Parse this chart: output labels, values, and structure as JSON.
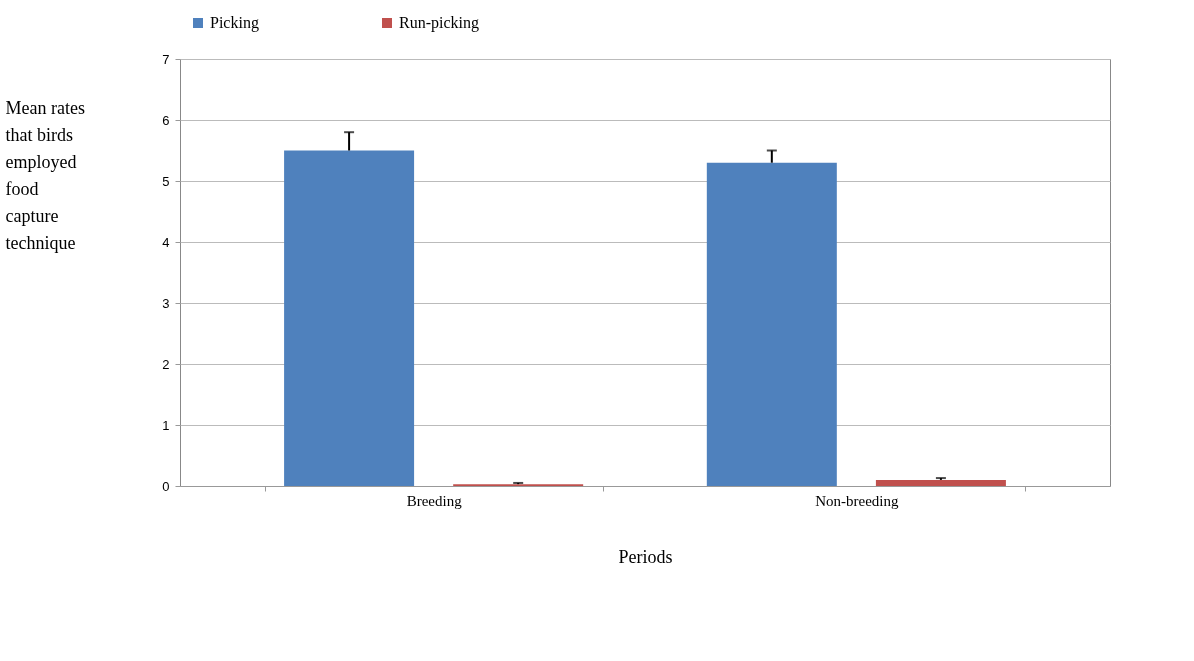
{
  "chart_data": {
    "type": "bar",
    "xlabel": "Periods",
    "ylabel": "Mean rates that birds employed food capture technique",
    "categories": [
      "Breeding",
      "Non-breeding"
    ],
    "series": [
      {
        "name": "Picking",
        "color": "#4f81bd",
        "values": [
          5.5,
          5.3
        ],
        "errors": [
          [
            5.5,
            5.8
          ],
          [
            5.3,
            5.5
          ]
        ]
      },
      {
        "name": "Run-picking",
        "color": "#c0504d",
        "values": [
          0.03,
          0.1
        ],
        "errors": [
          [
            0.03,
            0.05
          ],
          [
            0.1,
            0.13
          ]
        ]
      }
    ],
    "ylim": [
      0,
      7
    ],
    "yticks": [
      0,
      1,
      2,
      3,
      4,
      5,
      6,
      7
    ],
    "grid": "y",
    "legend": "top"
  }
}
